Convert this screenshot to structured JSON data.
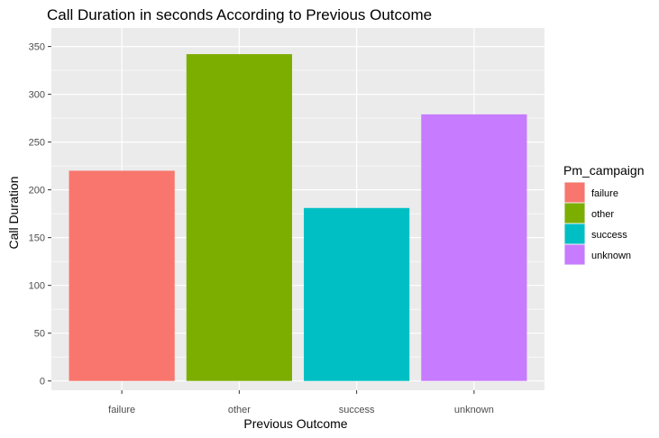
{
  "chart_data": {
    "type": "bar",
    "title": "Call Duration in seconds According to Previous Outcome",
    "xlabel": "Previous Outcome",
    "ylabel": "Call Duration",
    "categories": [
      "failure",
      "other",
      "success",
      "unknown"
    ],
    "values": [
      220,
      342,
      181,
      279
    ],
    "colors": [
      "#F8766D",
      "#7CAE00",
      "#00BFC4",
      "#C77CFF"
    ],
    "ylim": [
      0,
      360
    ],
    "yticks": [
      0,
      50,
      100,
      150,
      200,
      250,
      300,
      350
    ],
    "grid": true,
    "panel_background": "#EBEBEB",
    "legend": {
      "title": "Pm_campaign",
      "position": "right",
      "items": [
        "failure",
        "other",
        "success",
        "unknown"
      ]
    }
  }
}
